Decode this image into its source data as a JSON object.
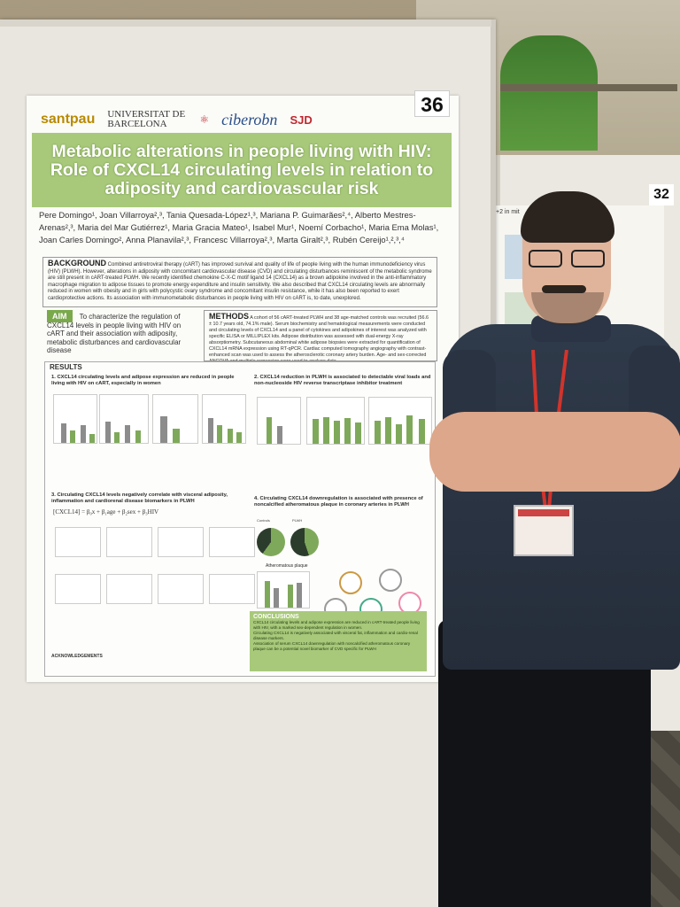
{
  "poster": {
    "number": "36",
    "logos": {
      "santpau": "santpau",
      "ub": "UNIVERSITAT DE BARCELONA",
      "ciber": "ciberobn",
      "sjd": "SJD"
    },
    "title": "Metabolic alterations in people living with HIV: Role of CXCL14 circulating levels in relation to adiposity and cardiovascular risk",
    "authors": "Pere Domingo¹, Joan Villarroya²,³, Tania Quesada-López¹,³, Mariana P. Guimarães²,⁴, Alberto Mestres-Arenas²,³, Maria del Mar Gutiérrez¹, Maria Gracia Mateo¹, Isabel Mur¹, Noemí Corbacho¹, Maria Ema Molas¹, Joan Carles Domingo², Anna Planavila²,³, Francesc Villarroya²,³, Marta Giralt²,³, Rubén Cereijo¹,²,³,⁴",
    "background_label": "BACKGROUND",
    "background_text": "Combined antiretroviral therapy (cART) has improved survival and quality of life of people living with the human immunodeficiency virus (HIV) (PLWH). However, alterations in adiposity with concomitant cardiovascular disease (CVD) and circulating disturbances reminiscent of the metabolic syndrome are still present in cART-treated PLWH. We recently identified chemokine C-X-C motif ligand 14 (CXCL14) as a brown adipokine involved in the anti-inflammatory macrophage migration to adipose tissues to promote energy expenditure and insulin sensitivity. We also described that CXCL14 circulating levels are abnormally reduced in women with obesity and in girls with polycystic ovary syndrome and concomitant insulin resistance, while it has also been reported to exert cardioprotective actions. Its association with immunometabolic disturbances in people living with HIV on cART is, to date, unexplored.",
    "aim_label": "AIM",
    "aim_text": "To characterize the regulation of CXCL14 levels in people living with HIV on cART and their association with adiposity, metabolic disturbances and cardiovascular disease",
    "methods_label": "METHODS",
    "methods_text": "A cohort of 56 cART-treated PLWH and 38 age-matched controls was recruited (56.6 ± 10.7 years old, 74.1% male). Serum biochemistry and hematological measurements were conducted and circulating levels of CXCL14 and a panel of cytokines and adipokines of interest was analyzed with specific ELISA or MILLIPLEX kits. Adipose distribution was assessed with dual-energy X-ray absorptiometry. Subcutaneous abdominal white adipose biopsies were extracted for quantification of CXCL14 mRNA expression using RT-qPCR. Cardiac computed tomography angiography with contrast-enhanced scan was used to assess the atherosclerotic coronary artery burden. Age- and sex-corrected ANCOVA and multiple regression were used to analyze data.",
    "results_label": "RESULTS",
    "result1": "1. CXCL14 circulating levels and adipose expression are reduced in people living with HIV on cART, especially in women",
    "result2": "2. CXCL14 reduction in PLWH is associated to detectable viral loads and non-nucleoside HIV reverse transcriptase inhibitor treatment",
    "result3": "3. Circulating CXCL14 levels negatively correlate with visceral adiposity, inflammation and cardiorenal disease biomarkers in PLWH",
    "result4": "4. Circulating CXCL14 downregulation is associated with presence of noncalcified atheromatous plaque in coronary arteries in PLWH",
    "formula": "[CXCL14] = β₀x + β₁age + β₂sex + β₃HIV",
    "plaque_label": "Atheromatous plaque",
    "pie_labels": [
      "Controls",
      "PLWH"
    ],
    "conclusions_label": "CONCLUSIONS",
    "conclusions": [
      "CXCL14 circulating levels and adipose expression are reduced in cART-treated people living with HIV, with a marked sex-dependent regulation in women.",
      "Circulating CXCL14 is negatively associated with visceral fat, inflammation and cardio-renal disease markers.",
      "Association of serum CXCL14 downregulation with noncalcified atheromatous coronary plaque can be a potential novel biomarker of CVD specific for PLWH"
    ],
    "acknowledgements": "ACKNOWLEDGEMENTS"
  },
  "neighbor_poster": {
    "number": "32",
    "title_fragment": "+2 in mit"
  },
  "colors": {
    "title_band": "#a8c97a",
    "aim_label": "#7aa94c",
    "lanyard": "#d0342c",
    "shirt": "#2f3a4a"
  }
}
